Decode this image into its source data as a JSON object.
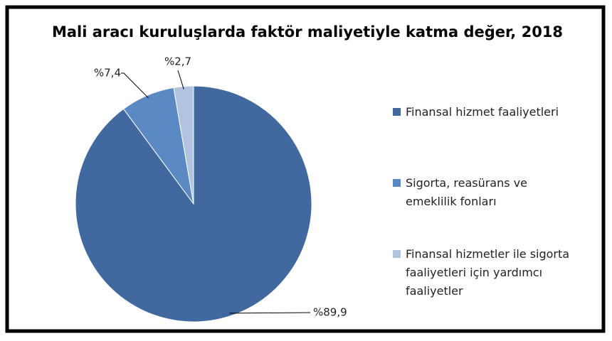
{
  "chart_data": {
    "type": "pie",
    "title": "Mali aracı kuruluşlarda faktör maliyetiyle katma değer, 2018",
    "categories": [
      "Finansal hizmet faaliyetleri",
      "Sigorta, reasürans ve emeklilik fonları",
      "Finansal hizmetler ile sigorta faaliyetleri için yardımcı faaliyetler"
    ],
    "values": [
      89.9,
      7.4,
      2.7
    ],
    "value_labels": [
      "%89,9",
      "%7,4",
      "%2,7"
    ],
    "colors": [
      "#41699f",
      "#5a89c4",
      "#b1c3df"
    ],
    "legend": "right"
  }
}
